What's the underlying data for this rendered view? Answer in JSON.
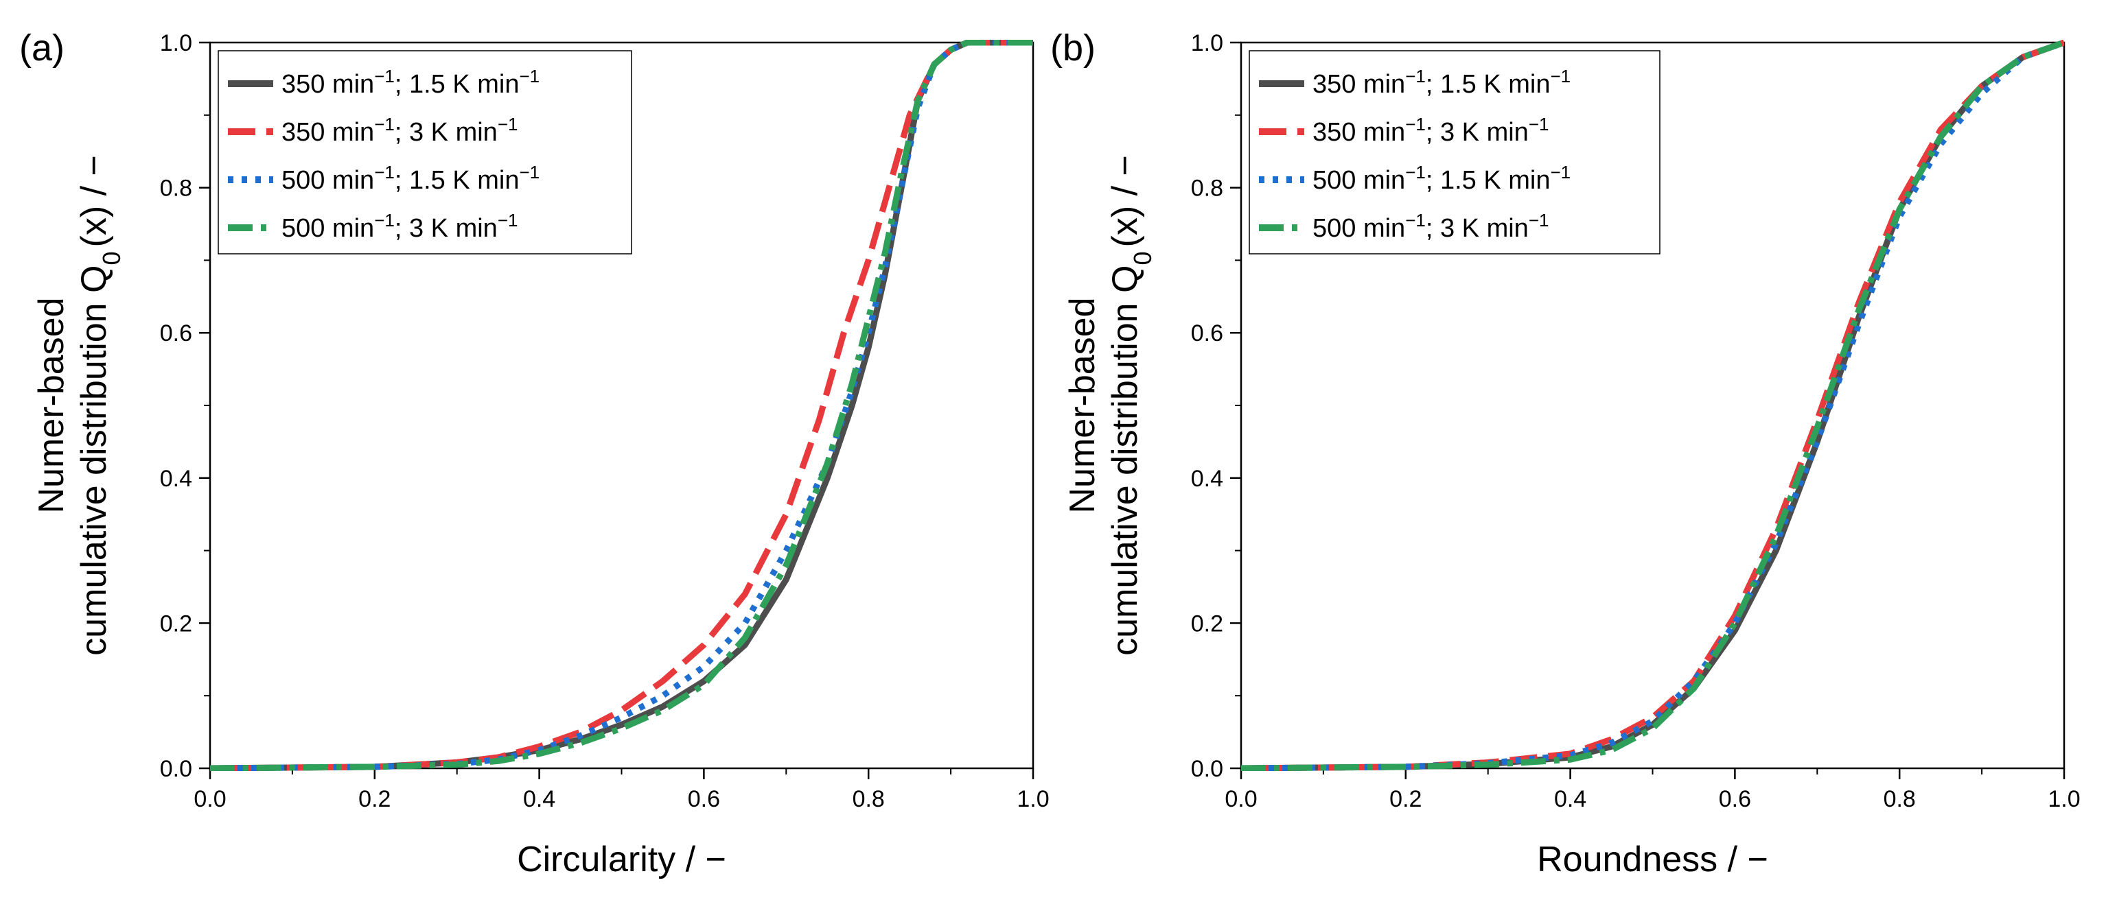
{
  "series_styles": [
    {
      "name": "350 min⁻¹; 1.5 K min⁻¹",
      "label_main": "350 min",
      "label_mid": "; 1.5 K min",
      "color": "#4d4d4d",
      "dash": "solid"
    },
    {
      "name": "350 min⁻¹; 3 K min⁻¹",
      "label_main": "350 min",
      "label_mid": "; 3 K min",
      "color": "#e8393c",
      "dash": "dash"
    },
    {
      "name": "500 min⁻¹; 1.5 K min⁻¹",
      "label_main": "500 min",
      "label_mid": "; 1.5 K min",
      "color": "#1f6fd1",
      "dash": "dot"
    },
    {
      "name": "500 min⁻¹; 3 K min⁻¹",
      "label_main": "500 min",
      "label_mid": "; 3 K min",
      "color": "#2ea05a",
      "dash": "dashdot"
    }
  ],
  "superscript": "−1",
  "chart_data": [
    {
      "type": "line",
      "panel_label": "(a)",
      "xlabel": "Circularity / −",
      "ylabel_line1": "Numer-based",
      "ylabel_line2_main": "cumulative distribution Q",
      "ylabel_sub": "0",
      "ylabel_tail": "(x) / −",
      "xlim": [
        0,
        1
      ],
      "ylim": [
        0,
        1
      ],
      "xticks": [
        "0.0",
        "0.2",
        "0.4",
        "0.6",
        "0.8",
        "1.0"
      ],
      "yticks": [
        "0.0",
        "0.2",
        "0.4",
        "0.6",
        "0.8",
        "1.0"
      ],
      "legend_position": "top-left",
      "series": [
        {
          "name": "350 min⁻¹; 1.5 K min⁻¹",
          "x": [
            0,
            0.2,
            0.3,
            0.35,
            0.4,
            0.45,
            0.5,
            0.55,
            0.6,
            0.65,
            0.7,
            0.75,
            0.78,
            0.8,
            0.82,
            0.84,
            0.86,
            0.88,
            0.9,
            0.92,
            1.0
          ],
          "y": [
            0,
            0.002,
            0.008,
            0.015,
            0.025,
            0.04,
            0.06,
            0.085,
            0.12,
            0.17,
            0.26,
            0.4,
            0.5,
            0.58,
            0.68,
            0.8,
            0.92,
            0.97,
            0.99,
            1.0,
            1.0
          ]
        },
        {
          "name": "350 min⁻¹; 3 K min⁻¹",
          "x": [
            0,
            0.2,
            0.3,
            0.35,
            0.4,
            0.45,
            0.5,
            0.55,
            0.6,
            0.65,
            0.7,
            0.74,
            0.77,
            0.8,
            0.82,
            0.85,
            0.88,
            0.9,
            0.92,
            1.0
          ],
          "y": [
            0,
            0.002,
            0.008,
            0.015,
            0.03,
            0.05,
            0.08,
            0.12,
            0.17,
            0.24,
            0.35,
            0.48,
            0.6,
            0.7,
            0.78,
            0.9,
            0.97,
            0.99,
            1.0,
            1.0
          ]
        },
        {
          "name": "500 min⁻¹; 1.5 K min⁻¹",
          "x": [
            0,
            0.2,
            0.3,
            0.35,
            0.4,
            0.45,
            0.5,
            0.55,
            0.6,
            0.65,
            0.7,
            0.75,
            0.78,
            0.8,
            0.82,
            0.84,
            0.86,
            0.88,
            0.9,
            0.92,
            1.0
          ],
          "y": [
            0,
            0.002,
            0.006,
            0.012,
            0.025,
            0.045,
            0.07,
            0.1,
            0.14,
            0.2,
            0.3,
            0.42,
            0.52,
            0.6,
            0.69,
            0.8,
            0.91,
            0.97,
            0.99,
            1.0,
            1.0
          ]
        },
        {
          "name": "500 min⁻¹; 3 K min⁻¹",
          "x": [
            0,
            0.2,
            0.3,
            0.35,
            0.4,
            0.45,
            0.5,
            0.55,
            0.6,
            0.65,
            0.7,
            0.75,
            0.78,
            0.8,
            0.82,
            0.84,
            0.86,
            0.88,
            0.9,
            0.92,
            1.0
          ],
          "y": [
            0,
            0.002,
            0.005,
            0.01,
            0.02,
            0.035,
            0.055,
            0.08,
            0.115,
            0.18,
            0.28,
            0.42,
            0.53,
            0.62,
            0.71,
            0.82,
            0.92,
            0.97,
            0.99,
            1.0,
            1.0
          ]
        }
      ]
    },
    {
      "type": "line",
      "panel_label": "(b)",
      "xlabel": "Roundness / −",
      "ylabel_line1": "Numer-based",
      "ylabel_line2_main": "cumulative distribution Q",
      "ylabel_sub": "0",
      "ylabel_tail": "(x) / −",
      "xlim": [
        0,
        1
      ],
      "ylim": [
        0,
        1
      ],
      "xticks": [
        "0.0",
        "0.2",
        "0.4",
        "0.6",
        "0.8",
        "1.0"
      ],
      "yticks": [
        "0.0",
        "0.2",
        "0.4",
        "0.6",
        "0.8",
        "1.0"
      ],
      "legend_position": "top-left",
      "series": [
        {
          "name": "350 min⁻¹; 1.5 K min⁻¹",
          "x": [
            0,
            0.2,
            0.3,
            0.4,
            0.45,
            0.5,
            0.55,
            0.6,
            0.65,
            0.7,
            0.75,
            0.8,
            0.85,
            0.9,
            0.95,
            1.0
          ],
          "y": [
            0,
            0.002,
            0.006,
            0.015,
            0.03,
            0.06,
            0.11,
            0.19,
            0.3,
            0.45,
            0.62,
            0.77,
            0.87,
            0.94,
            0.98,
            1.0
          ]
        },
        {
          "name": "350 min⁻¹; 3 K min⁻¹",
          "x": [
            0,
            0.2,
            0.3,
            0.4,
            0.45,
            0.5,
            0.55,
            0.6,
            0.65,
            0.7,
            0.75,
            0.8,
            0.85,
            0.9,
            0.95,
            1.0
          ],
          "y": [
            0,
            0.002,
            0.008,
            0.02,
            0.04,
            0.07,
            0.12,
            0.21,
            0.33,
            0.48,
            0.64,
            0.78,
            0.88,
            0.94,
            0.98,
            1.0
          ]
        },
        {
          "name": "500 min⁻¹; 1.5 K min⁻¹",
          "x": [
            0,
            0.2,
            0.3,
            0.4,
            0.45,
            0.5,
            0.55,
            0.6,
            0.65,
            0.7,
            0.75,
            0.8,
            0.85,
            0.9,
            0.95,
            1.0
          ],
          "y": [
            0,
            0.002,
            0.007,
            0.018,
            0.035,
            0.065,
            0.12,
            0.2,
            0.31,
            0.45,
            0.61,
            0.76,
            0.86,
            0.93,
            0.98,
            1.0
          ]
        },
        {
          "name": "500 min⁻¹; 3 K min⁻¹",
          "x": [
            0,
            0.2,
            0.3,
            0.4,
            0.45,
            0.5,
            0.55,
            0.6,
            0.65,
            0.7,
            0.75,
            0.8,
            0.85,
            0.9,
            0.95,
            1.0
          ],
          "y": [
            0,
            0.002,
            0.005,
            0.012,
            0.025,
            0.055,
            0.11,
            0.2,
            0.32,
            0.47,
            0.63,
            0.77,
            0.87,
            0.94,
            0.98,
            1.0
          ]
        }
      ]
    }
  ]
}
